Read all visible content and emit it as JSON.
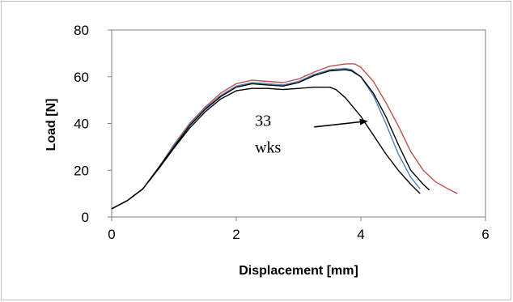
{
  "chart_data": {
    "type": "line",
    "title": "",
    "xlabel": "Displacement [mm]",
    "ylabel": "Load [N]",
    "xlim": [
      0,
      6
    ],
    "ylim": [
      0,
      80
    ],
    "xticks": [
      0,
      2,
      4,
      6
    ],
    "yticks": [
      0,
      20,
      40,
      60,
      80
    ],
    "grid": false,
    "legend": "none",
    "annotation": {
      "lines": [
        "33",
        "wks"
      ],
      "arrow_from": [
        3.25,
        38.5
      ],
      "arrow_to": [
        4.1,
        41
      ]
    },
    "series": [
      {
        "color": "#c0504d",
        "x": [
          0,
          0.25,
          0.5,
          0.75,
          1.0,
          1.25,
          1.5,
          1.75,
          2.0,
          2.25,
          2.5,
          2.75,
          3.0,
          3.25,
          3.5,
          3.75,
          3.9,
          4.0,
          4.2,
          4.4,
          4.6,
          4.8,
          5.0,
          5.2,
          5.4,
          5.55
        ],
        "y": [
          3.5,
          7,
          12,
          21,
          31,
          40,
          47,
          53,
          57,
          58.5,
          58,
          57.5,
          59,
          62,
          64.5,
          65.5,
          65.5,
          64,
          58,
          49,
          39,
          28,
          20,
          15,
          12,
          10
        ]
      },
      {
        "color": "#4f81bd",
        "x": [
          0,
          0.25,
          0.5,
          0.75,
          1.0,
          1.25,
          1.5,
          1.75,
          2.0,
          2.25,
          2.5,
          2.75,
          3.0,
          3.25,
          3.5,
          3.75,
          3.85,
          4.0,
          4.2,
          4.4,
          4.6,
          4.8,
          4.95
        ],
        "y": [
          3.5,
          7,
          12,
          21,
          30.5,
          39.5,
          46.5,
          52,
          56,
          57.5,
          57,
          56.5,
          58,
          61,
          63,
          63.5,
          63,
          60,
          52,
          40,
          27,
          17,
          12
        ]
      },
      {
        "color": "#000000",
        "x": [
          0,
          0.25,
          0.5,
          0.75,
          1.0,
          1.25,
          1.5,
          1.75,
          2.0,
          2.25,
          2.5,
          2.75,
          3.0,
          3.25,
          3.5,
          3.75,
          3.85,
          4.0,
          4.2,
          4.4,
          4.6,
          4.8,
          5.0,
          5.1
        ],
        "y": [
          3.5,
          7,
          12,
          21,
          30,
          39,
          46,
          51.5,
          55.5,
          57,
          56.5,
          56,
          57.5,
          60.5,
          62.5,
          63,
          62.5,
          60,
          53,
          43,
          31,
          20,
          14,
          11.5
        ]
      },
      {
        "color": "#000000",
        "x": [
          0,
          0.25,
          0.5,
          0.75,
          1.0,
          1.25,
          1.5,
          1.75,
          2.0,
          2.25,
          2.5,
          2.75,
          3.0,
          3.25,
          3.5,
          3.6,
          3.75,
          4.0,
          4.2,
          4.4,
          4.6,
          4.8,
          4.95
        ],
        "y": [
          3.5,
          7,
          12,
          20.5,
          29.5,
          38,
          45,
          50.5,
          54,
          55,
          55,
          54.5,
          55,
          55.5,
          55.5,
          54.5,
          51,
          43,
          35,
          27,
          20,
          14,
          10
        ]
      }
    ]
  }
}
